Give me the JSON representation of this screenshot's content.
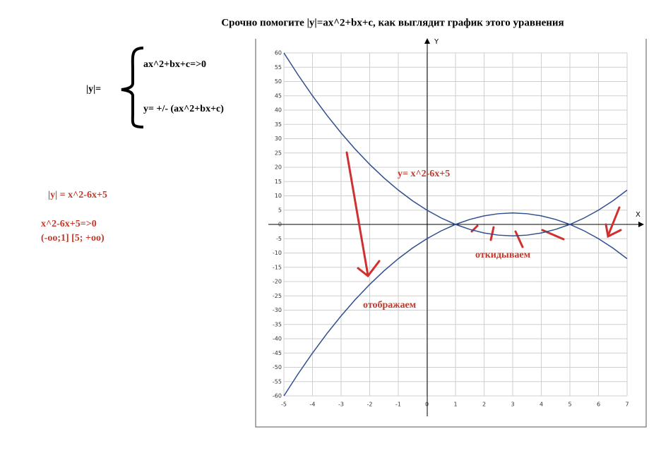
{
  "title": "Срочно помогите |y|=ax^2+bx+c, как выглядит график этого уравнения",
  "system": {
    "lhs": "|y|=",
    "case1": "ax^2+bx+c=>0",
    "case2": "y= +/- (ax^2+bx+c)"
  },
  "notes": [
    "|y|  =  x^2-6x+5",
    "x^2-6x+5=>0",
    "(-oo;1] [5; +oo)"
  ],
  "chart_data": {
    "type": "line",
    "xlabel": "X",
    "ylabel": "Y",
    "annotations": [
      "откидываем",
      "отображаем"
    ],
    "x": [
      -5,
      -4.5,
      -4,
      -3.5,
      -3,
      -2.5,
      -2,
      -1.5,
      -1,
      -0.5,
      0,
      0.5,
      1,
      1.5,
      2,
      2.5,
      3,
      3.5,
      4,
      4.5,
      5,
      5.5,
      6,
      6.5,
      7
    ],
    "series": [
      {
        "name": "y= x^2-6x+5",
        "color": "#2f4f8f",
        "values": [
          60,
          52.25,
          45,
          38.25,
          32,
          26.25,
          21,
          16.25,
          12,
          8.25,
          5,
          2.25,
          0,
          -1.75,
          -3,
          -3.75,
          -4,
          -3.75,
          -3,
          -1.75,
          0,
          2.25,
          5,
          8.25,
          12
        ]
      },
      {
        "color": "#2f4f8f",
        "values": [
          -60,
          -52.25,
          -45,
          -38.25,
          -32,
          -26.25,
          -21,
          -16.25,
          -12,
          -8.25,
          -5,
          -2.25,
          0,
          1.75,
          3,
          3.75,
          4,
          3.75,
          3,
          1.75,
          0,
          -2.25,
          -5,
          -8.25,
          -12
        ]
      }
    ],
    "xlim": [
      -5,
      7
    ],
    "ylim": [
      -60,
      60
    ],
    "xticks": [
      -5,
      -4,
      -3,
      -2,
      -1,
      0,
      1,
      2,
      3,
      4,
      5,
      6,
      7
    ],
    "yticks": [
      -60,
      -55,
      -50,
      -45,
      -40,
      -35,
      -30,
      -25,
      -20,
      -15,
      -10,
      -5,
      0,
      5,
      10,
      15,
      20,
      25,
      30,
      35,
      40,
      45,
      50,
      55,
      60
    ],
    "grid": true
  }
}
